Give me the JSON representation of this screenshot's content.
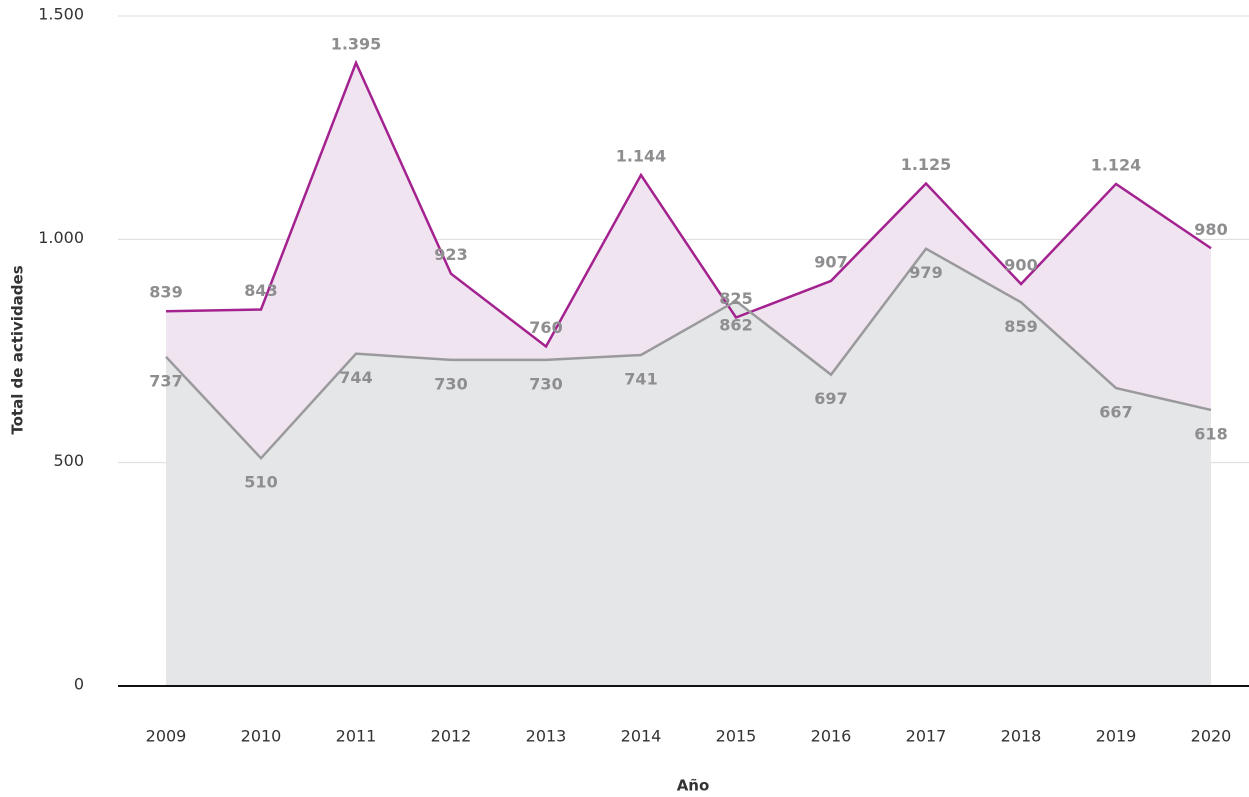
{
  "chart_data": {
    "type": "area",
    "x_label": "Año",
    "y_label": "Total de actividades",
    "categories": [
      "2009",
      "2010",
      "2011",
      "2012",
      "2013",
      "2014",
      "2015",
      "2016",
      "2017",
      "2018",
      "2019",
      "2020"
    ],
    "series": [
      {
        "color": "#a3228f",
        "fill": "#f1e4f1",
        "values": [
          839,
          843,
          1395,
          923,
          760,
          1144,
          825,
          907,
          1125,
          900,
          1124,
          980
        ],
        "value_labels": [
          "839",
          "843",
          "1.395",
          "923",
          "760",
          "1.144",
          "825",
          "907",
          "1.125",
          "900",
          "1.124",
          "980"
        ]
      },
      {
        "color": "#9a9a9c",
        "fill": "#e5e6e8",
        "values": [
          737,
          510,
          744,
          730,
          730,
          741,
          862,
          697,
          979,
          859,
          667,
          618
        ]
      }
    ],
    "ylim": [
      0,
      1500
    ],
    "yticks": [
      0,
      500,
      {
        "value": 1000,
        "label": "1.000"
      },
      {
        "value": 1500,
        "label": "1.500"
      }
    ],
    "grid": true
  }
}
